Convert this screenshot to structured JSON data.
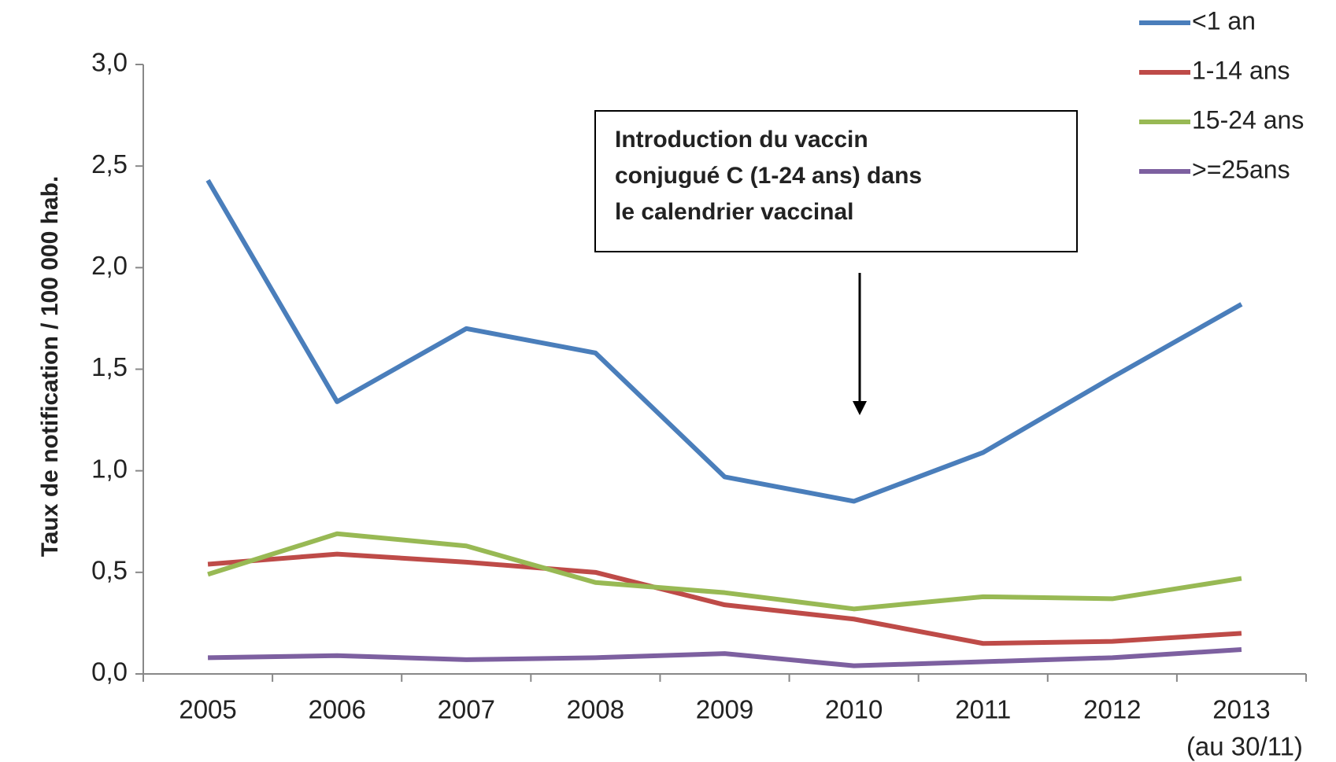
{
  "chart_data": {
    "type": "line",
    "y_axis_label": "Taux de notification / 100 000 hab.",
    "categories": [
      "2005",
      "2006",
      "2007",
      "2008",
      "2009",
      "2010",
      "2011",
      "2012",
      "2013"
    ],
    "last_category_note": "(au 30/11)",
    "series": [
      {
        "name": "<1 an",
        "color": "#4a7ebb",
        "values": [
          2.43,
          1.34,
          1.7,
          1.58,
          0.97,
          0.85,
          1.09,
          1.46,
          1.82
        ]
      },
      {
        "name": "1-14 ans",
        "color": "#be4b48",
        "values": [
          0.54,
          0.59,
          0.55,
          0.5,
          0.34,
          0.27,
          0.15,
          0.16,
          0.2
        ]
      },
      {
        "name": "15-24 ans",
        "color": "#98b954",
        "values": [
          0.49,
          0.69,
          0.63,
          0.45,
          0.4,
          0.32,
          0.38,
          0.37,
          0.47
        ]
      },
      {
        "name": ">=25ans",
        "color": "#7d60a0",
        "values": [
          0.08,
          0.09,
          0.07,
          0.08,
          0.1,
          0.04,
          0.06,
          0.08,
          0.12
        ]
      }
    ],
    "ylim": [
      0,
      3
    ],
    "yticks": [
      {
        "value": 0,
        "label": "0,0"
      },
      {
        "value": 0.5,
        "label": "0,5"
      },
      {
        "value": 1,
        "label": "1,0"
      },
      {
        "value": 1.5,
        "label": "1,5"
      },
      {
        "value": 2,
        "label": "2,0"
      },
      {
        "value": 2.5,
        "label": "2,5"
      },
      {
        "value": 3,
        "label": "3,0"
      }
    ],
    "annotation_lines": [
      "Introduction du vaccin",
      "conjugué  C (1-24 ans) dans",
      "le calendrier vaccinal"
    ],
    "legend_position": "top-right"
  }
}
